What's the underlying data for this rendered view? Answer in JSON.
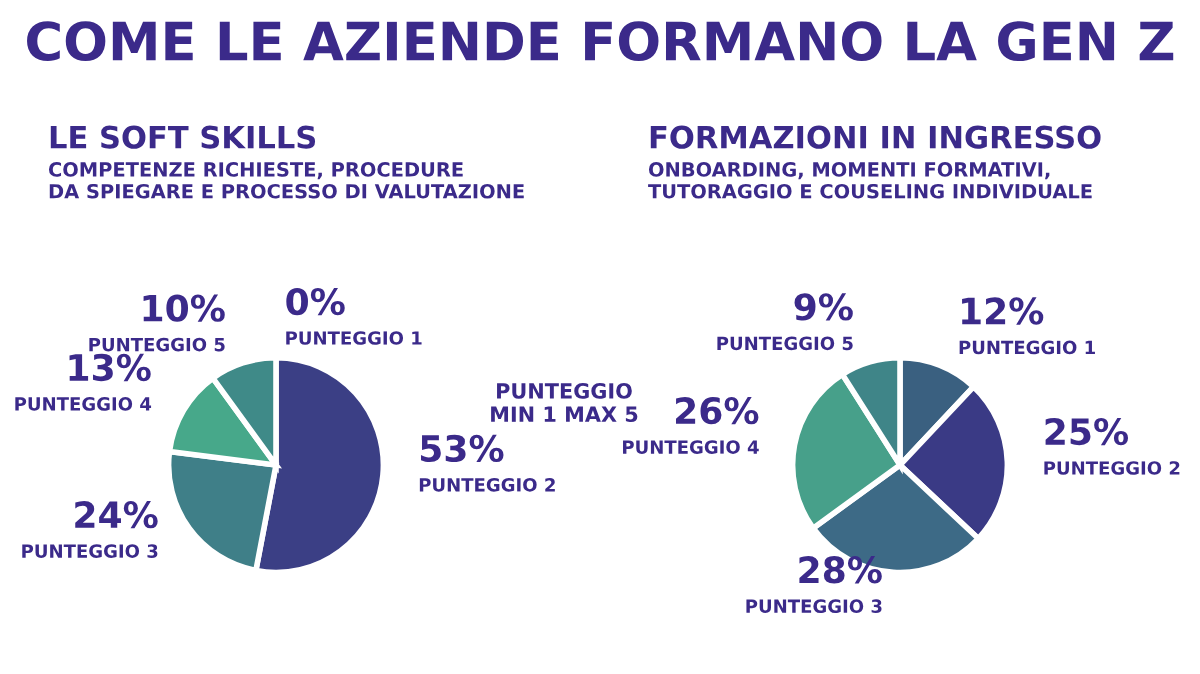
{
  "chart_data": [
    {
      "type": "pie",
      "title": "LE SOFT SKILLS",
      "subtitle": "COMPETENZE RICHIESTE, PROCEDURE\nDA SPIEGARE E PROCESSO DI VALUTAZIONE",
      "annotations": [
        "COME LE AZIENDE FORMANO LA GEN Z",
        "PUNTEGGIO\nMIN 1 MAX 5"
      ],
      "categories": [
        "PUNTEGGIO 1",
        "PUNTEGGIO 2",
        "PUNTEGGIO 3",
        "PUNTEGGIO 4",
        "PUNTEGGIO 5"
      ],
      "values": [
        0,
        53,
        24,
        13,
        10
      ],
      "value_labels": [
        "0%",
        "53%",
        "24%",
        "13%",
        "10%"
      ],
      "colors": [
        "#3a5a80",
        "#3b3f85",
        "#3f7f88",
        "#47a88a",
        "#3f8a88"
      ]
    },
    {
      "type": "pie",
      "title": "FORMAZIONI IN INGRESSO",
      "subtitle": "ONBOARDING, MOMENTI FORMATIVI,\nTUTORAGGIO E COUSELING INDIVIDUALE",
      "categories": [
        "PUNTEGGIO 1",
        "PUNTEGGIO 2",
        "PUNTEGGIO 3",
        "PUNTEGGIO 4",
        "PUNTEGGIO 5"
      ],
      "values": [
        12,
        25,
        28,
        26,
        9
      ],
      "value_labels": [
        "12%",
        "25%",
        "28%",
        "26%",
        "9%"
      ],
      "colors": [
        "#3a6080",
        "#3a3a85",
        "#3d6a86",
        "#47a08a",
        "#3f8588"
      ]
    }
  ]
}
